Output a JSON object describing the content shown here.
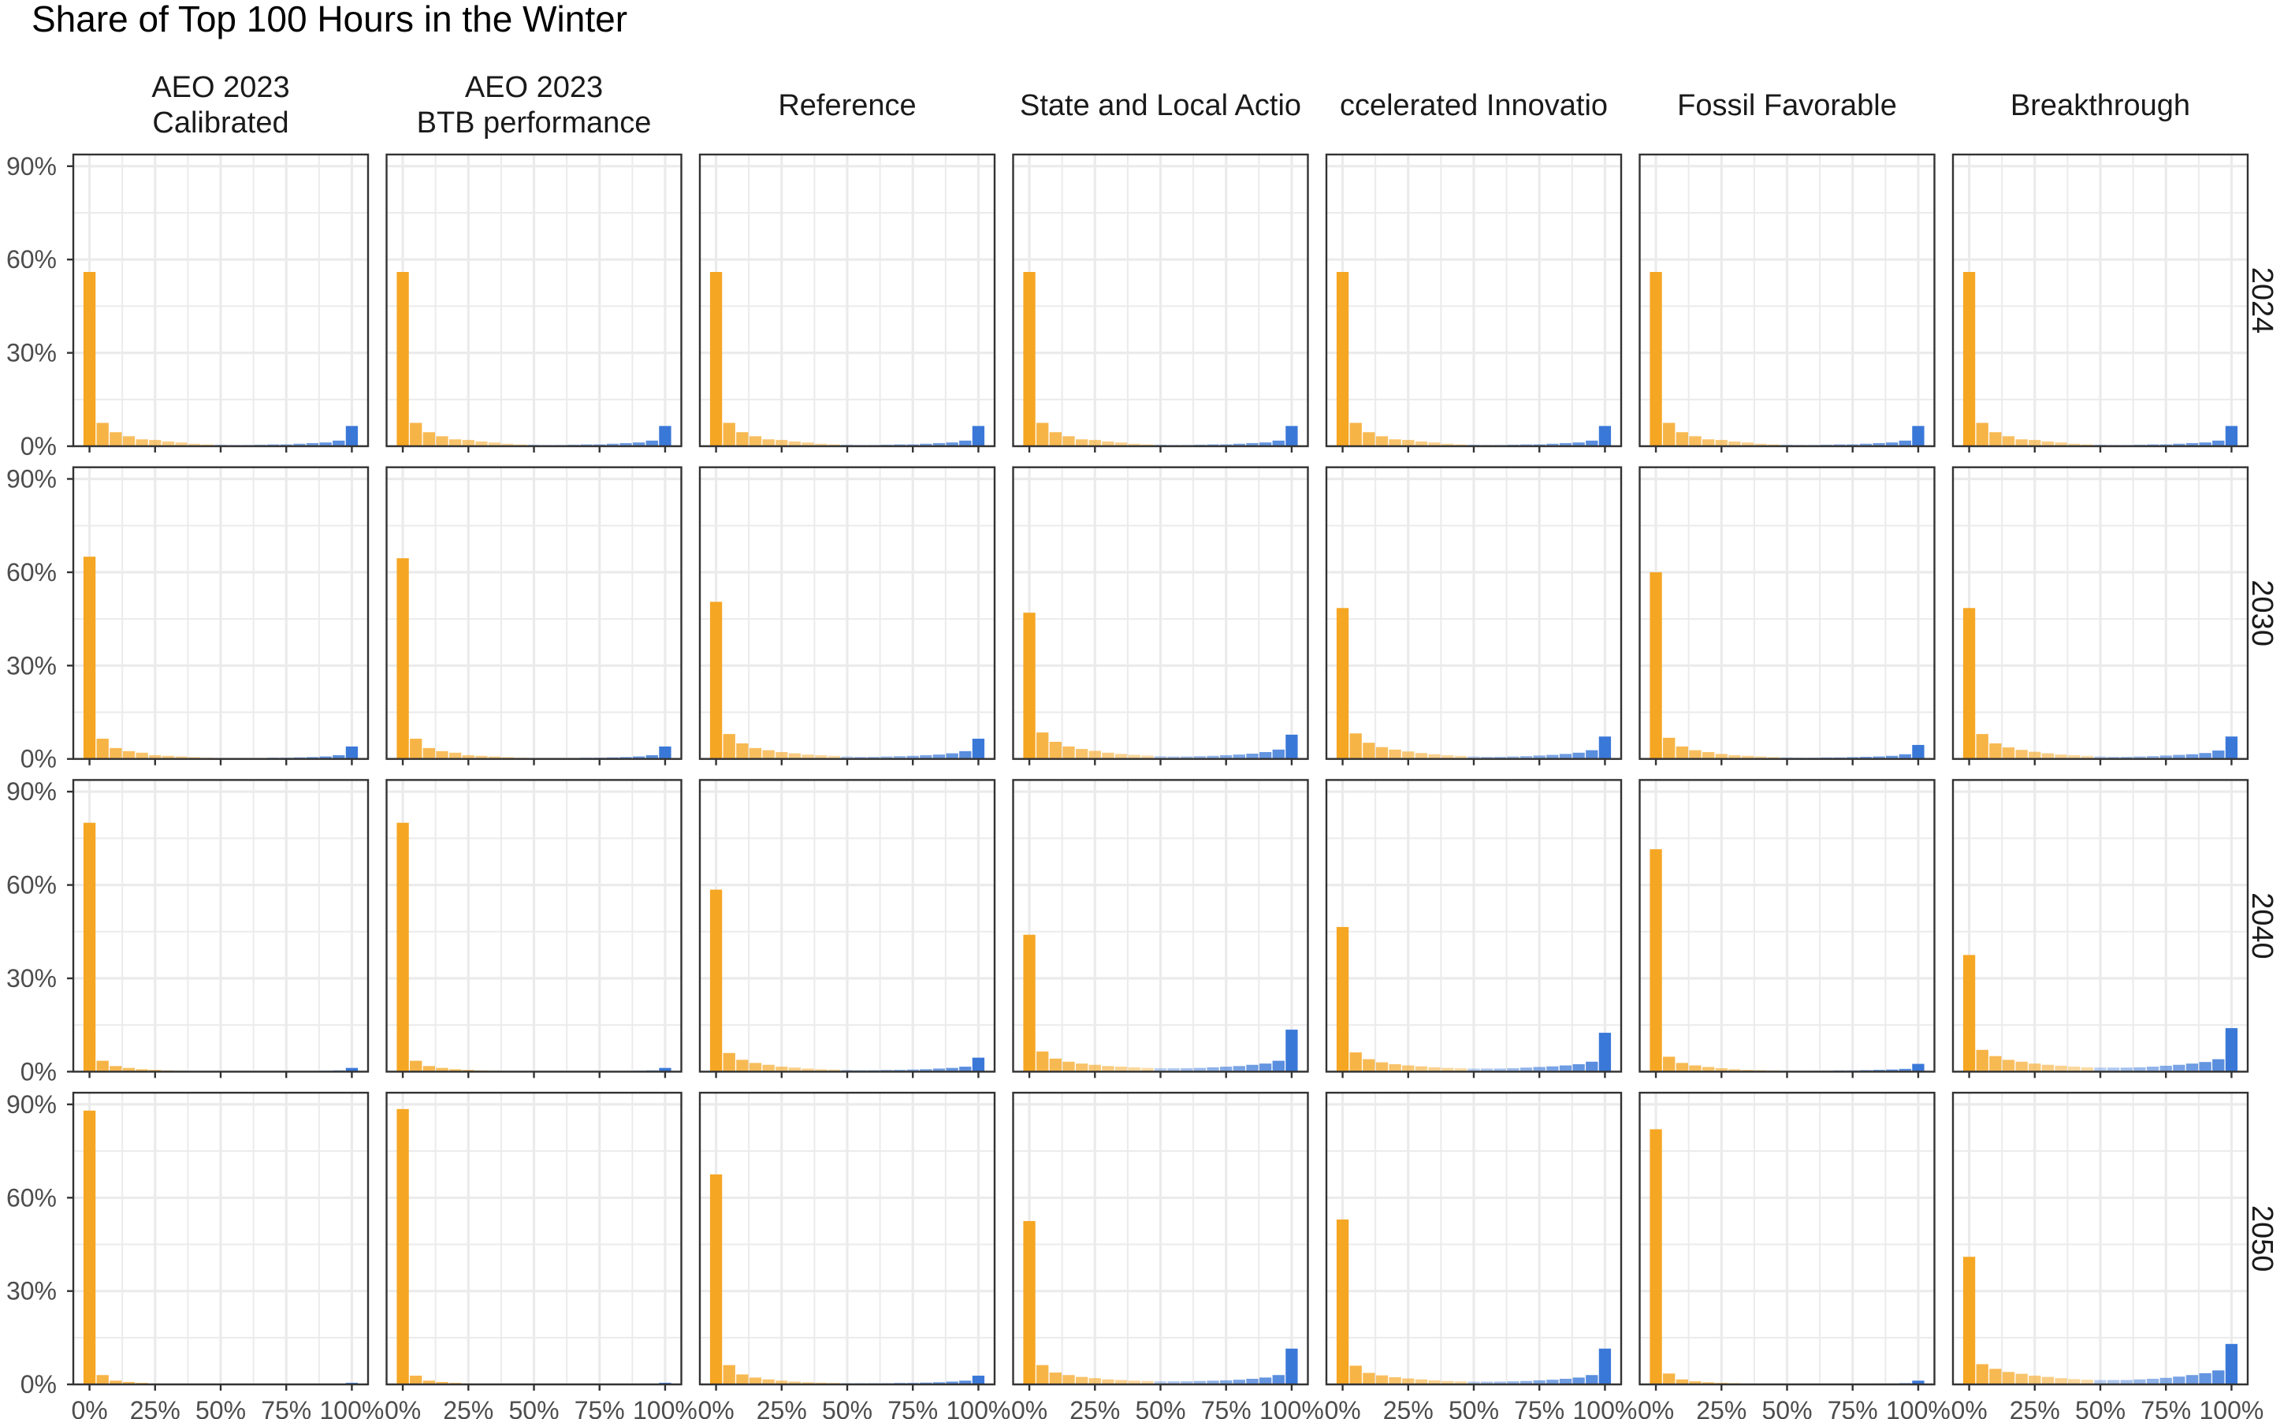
{
  "chart_data": {
    "type": "bar",
    "title": "Share of Top 100 Hours in the Winter",
    "xlabel": "",
    "ylabel": "",
    "xlim": [
      0,
      1
    ],
    "ylim": [
      0,
      0.9
    ],
    "grid": true,
    "legend": "none",
    "x": [
      0,
      0.05,
      0.1,
      0.15,
      0.2,
      0.25,
      0.3,
      0.35,
      0.4,
      0.45,
      0.5,
      0.55,
      0.6,
      0.65,
      0.7,
      0.75,
      0.8,
      0.85,
      0.9,
      0.95,
      1.0
    ],
    "x_tick_labels": [
      "0%",
      "25%",
      "50%",
      "75%",
      "100%"
    ],
    "x_ticks": [
      0,
      0.25,
      0.5,
      0.75,
      1.0
    ],
    "y_tick_labels": [
      "0%",
      "30%",
      "60%",
      "90%"
    ],
    "y_ticks": [
      0,
      0.3,
      0.6,
      0.9
    ],
    "colors": {
      "low": "#F5A623",
      "high": "#3A78D8",
      "grid": "#EBEBEB",
      "border": "#333333"
    },
    "scenarios": [
      "AEO 2023\nCalibrated",
      "AEO 2023\nBTB performance",
      "Reference",
      "State and Local Actio",
      "ccelerated Innovatio",
      "Fossil Favorable",
      "Breakthrough"
    ],
    "years": [
      "2024",
      "2030",
      "2040",
      "2050"
    ],
    "panels": [
      [
        [
          0.56,
          0.075,
          0.045,
          0.032,
          0.022,
          0.02,
          0.015,
          0.012,
          0.008,
          0.006,
          0.005,
          0.004,
          0.004,
          0.005,
          0.006,
          0.006,
          0.008,
          0.01,
          0.012,
          0.018,
          0.065
        ],
        [
          0.56,
          0.075,
          0.045,
          0.032,
          0.022,
          0.02,
          0.015,
          0.012,
          0.008,
          0.006,
          0.005,
          0.004,
          0.004,
          0.005,
          0.006,
          0.006,
          0.008,
          0.01,
          0.012,
          0.018,
          0.065
        ],
        [
          0.56,
          0.075,
          0.045,
          0.032,
          0.022,
          0.02,
          0.015,
          0.012,
          0.008,
          0.006,
          0.005,
          0.004,
          0.004,
          0.005,
          0.006,
          0.006,
          0.008,
          0.01,
          0.012,
          0.018,
          0.065
        ],
        [
          0.56,
          0.075,
          0.045,
          0.032,
          0.022,
          0.02,
          0.015,
          0.012,
          0.008,
          0.006,
          0.005,
          0.004,
          0.004,
          0.005,
          0.006,
          0.006,
          0.008,
          0.01,
          0.012,
          0.018,
          0.065
        ],
        [
          0.56,
          0.075,
          0.045,
          0.032,
          0.022,
          0.02,
          0.015,
          0.012,
          0.008,
          0.006,
          0.005,
          0.004,
          0.004,
          0.005,
          0.006,
          0.006,
          0.008,
          0.01,
          0.012,
          0.018,
          0.065
        ],
        [
          0.56,
          0.075,
          0.045,
          0.032,
          0.022,
          0.02,
          0.015,
          0.012,
          0.008,
          0.006,
          0.005,
          0.004,
          0.004,
          0.005,
          0.006,
          0.006,
          0.008,
          0.01,
          0.012,
          0.018,
          0.065
        ],
        [
          0.56,
          0.075,
          0.045,
          0.032,
          0.022,
          0.02,
          0.015,
          0.012,
          0.008,
          0.006,
          0.005,
          0.004,
          0.004,
          0.005,
          0.006,
          0.006,
          0.008,
          0.01,
          0.012,
          0.018,
          0.065
        ]
      ],
      [
        [
          0.65,
          0.065,
          0.035,
          0.025,
          0.02,
          0.012,
          0.01,
          0.008,
          0.006,
          0.004,
          0.003,
          0.003,
          0.003,
          0.003,
          0.004,
          0.004,
          0.005,
          0.006,
          0.008,
          0.012,
          0.04
        ],
        [
          0.645,
          0.065,
          0.035,
          0.025,
          0.02,
          0.012,
          0.01,
          0.008,
          0.006,
          0.004,
          0.003,
          0.003,
          0.003,
          0.003,
          0.004,
          0.004,
          0.005,
          0.006,
          0.008,
          0.012,
          0.04
        ],
        [
          0.505,
          0.08,
          0.05,
          0.035,
          0.028,
          0.022,
          0.018,
          0.014,
          0.012,
          0.01,
          0.008,
          0.007,
          0.007,
          0.008,
          0.009,
          0.01,
          0.012,
          0.014,
          0.018,
          0.025,
          0.065
        ],
        [
          0.47,
          0.085,
          0.055,
          0.04,
          0.032,
          0.026,
          0.02,
          0.016,
          0.013,
          0.011,
          0.009,
          0.008,
          0.008,
          0.009,
          0.01,
          0.012,
          0.014,
          0.017,
          0.022,
          0.03,
          0.078
        ],
        [
          0.485,
          0.082,
          0.052,
          0.038,
          0.03,
          0.024,
          0.019,
          0.015,
          0.012,
          0.01,
          0.008,
          0.007,
          0.007,
          0.008,
          0.009,
          0.011,
          0.013,
          0.016,
          0.02,
          0.028,
          0.072
        ],
        [
          0.6,
          0.068,
          0.04,
          0.028,
          0.022,
          0.016,
          0.012,
          0.01,
          0.008,
          0.006,
          0.005,
          0.004,
          0.004,
          0.005,
          0.005,
          0.006,
          0.007,
          0.008,
          0.01,
          0.015,
          0.045
        ],
        [
          0.485,
          0.08,
          0.05,
          0.037,
          0.029,
          0.023,
          0.018,
          0.014,
          0.012,
          0.01,
          0.008,
          0.007,
          0.007,
          0.008,
          0.009,
          0.011,
          0.013,
          0.015,
          0.019,
          0.027,
          0.072
        ]
      ],
      [
        [
          0.8,
          0.035,
          0.018,
          0.012,
          0.008,
          0.006,
          0.004,
          0.003,
          0.002,
          0.002,
          0.001,
          0.001,
          0.001,
          0.001,
          0.001,
          0.001,
          0.002,
          0.002,
          0.003,
          0.004,
          0.012
        ],
        [
          0.8,
          0.035,
          0.018,
          0.012,
          0.008,
          0.006,
          0.004,
          0.003,
          0.002,
          0.002,
          0.001,
          0.001,
          0.001,
          0.001,
          0.001,
          0.001,
          0.002,
          0.002,
          0.003,
          0.004,
          0.012
        ],
        [
          0.585,
          0.06,
          0.038,
          0.028,
          0.022,
          0.016,
          0.013,
          0.01,
          0.008,
          0.007,
          0.006,
          0.005,
          0.005,
          0.006,
          0.006,
          0.007,
          0.008,
          0.01,
          0.012,
          0.016,
          0.045
        ],
        [
          0.44,
          0.065,
          0.042,
          0.032,
          0.026,
          0.022,
          0.018,
          0.016,
          0.014,
          0.012,
          0.011,
          0.011,
          0.011,
          0.012,
          0.014,
          0.016,
          0.018,
          0.022,
          0.026,
          0.035,
          0.135
        ],
        [
          0.465,
          0.062,
          0.04,
          0.03,
          0.024,
          0.02,
          0.017,
          0.014,
          0.012,
          0.011,
          0.01,
          0.01,
          0.01,
          0.011,
          0.013,
          0.015,
          0.017,
          0.02,
          0.024,
          0.032,
          0.125
        ],
        [
          0.715,
          0.048,
          0.028,
          0.02,
          0.015,
          0.011,
          0.008,
          0.006,
          0.005,
          0.004,
          0.003,
          0.003,
          0.003,
          0.003,
          0.004,
          0.004,
          0.005,
          0.006,
          0.007,
          0.009,
          0.025
        ],
        [
          0.375,
          0.07,
          0.05,
          0.038,
          0.032,
          0.026,
          0.022,
          0.019,
          0.016,
          0.014,
          0.013,
          0.013,
          0.013,
          0.014,
          0.016,
          0.019,
          0.022,
          0.026,
          0.031,
          0.04,
          0.14
        ]
      ],
      [
        [
          0.88,
          0.03,
          0.012,
          0.008,
          0.005,
          0.003,
          0.002,
          0.002,
          0.001,
          0.001,
          0.001,
          0.001,
          0.001,
          0.001,
          0.001,
          0.001,
          0.001,
          0.001,
          0.001,
          0.002,
          0.005
        ],
        [
          0.885,
          0.028,
          0.012,
          0.008,
          0.005,
          0.003,
          0.002,
          0.002,
          0.001,
          0.001,
          0.001,
          0.001,
          0.001,
          0.001,
          0.001,
          0.001,
          0.001,
          0.001,
          0.001,
          0.002,
          0.005
        ],
        [
          0.675,
          0.062,
          0.032,
          0.022,
          0.016,
          0.012,
          0.009,
          0.007,
          0.006,
          0.005,
          0.004,
          0.004,
          0.004,
          0.004,
          0.005,
          0.005,
          0.006,
          0.007,
          0.009,
          0.012,
          0.028
        ],
        [
          0.525,
          0.062,
          0.038,
          0.03,
          0.024,
          0.02,
          0.016,
          0.014,
          0.012,
          0.011,
          0.01,
          0.01,
          0.01,
          0.011,
          0.012,
          0.013,
          0.015,
          0.018,
          0.022,
          0.03,
          0.115
        ],
        [
          0.53,
          0.06,
          0.037,
          0.029,
          0.023,
          0.019,
          0.016,
          0.013,
          0.011,
          0.01,
          0.009,
          0.009,
          0.009,
          0.01,
          0.011,
          0.013,
          0.015,
          0.018,
          0.022,
          0.03,
          0.115
        ],
        [
          0.82,
          0.035,
          0.016,
          0.01,
          0.007,
          0.005,
          0.004,
          0.003,
          0.002,
          0.002,
          0.002,
          0.002,
          0.002,
          0.002,
          0.002,
          0.002,
          0.002,
          0.003,
          0.003,
          0.004,
          0.012
        ],
        [
          0.41,
          0.065,
          0.05,
          0.04,
          0.034,
          0.028,
          0.024,
          0.02,
          0.017,
          0.015,
          0.014,
          0.014,
          0.014,
          0.016,
          0.018,
          0.021,
          0.025,
          0.03,
          0.036,
          0.045,
          0.13
        ]
      ]
    ]
  }
}
